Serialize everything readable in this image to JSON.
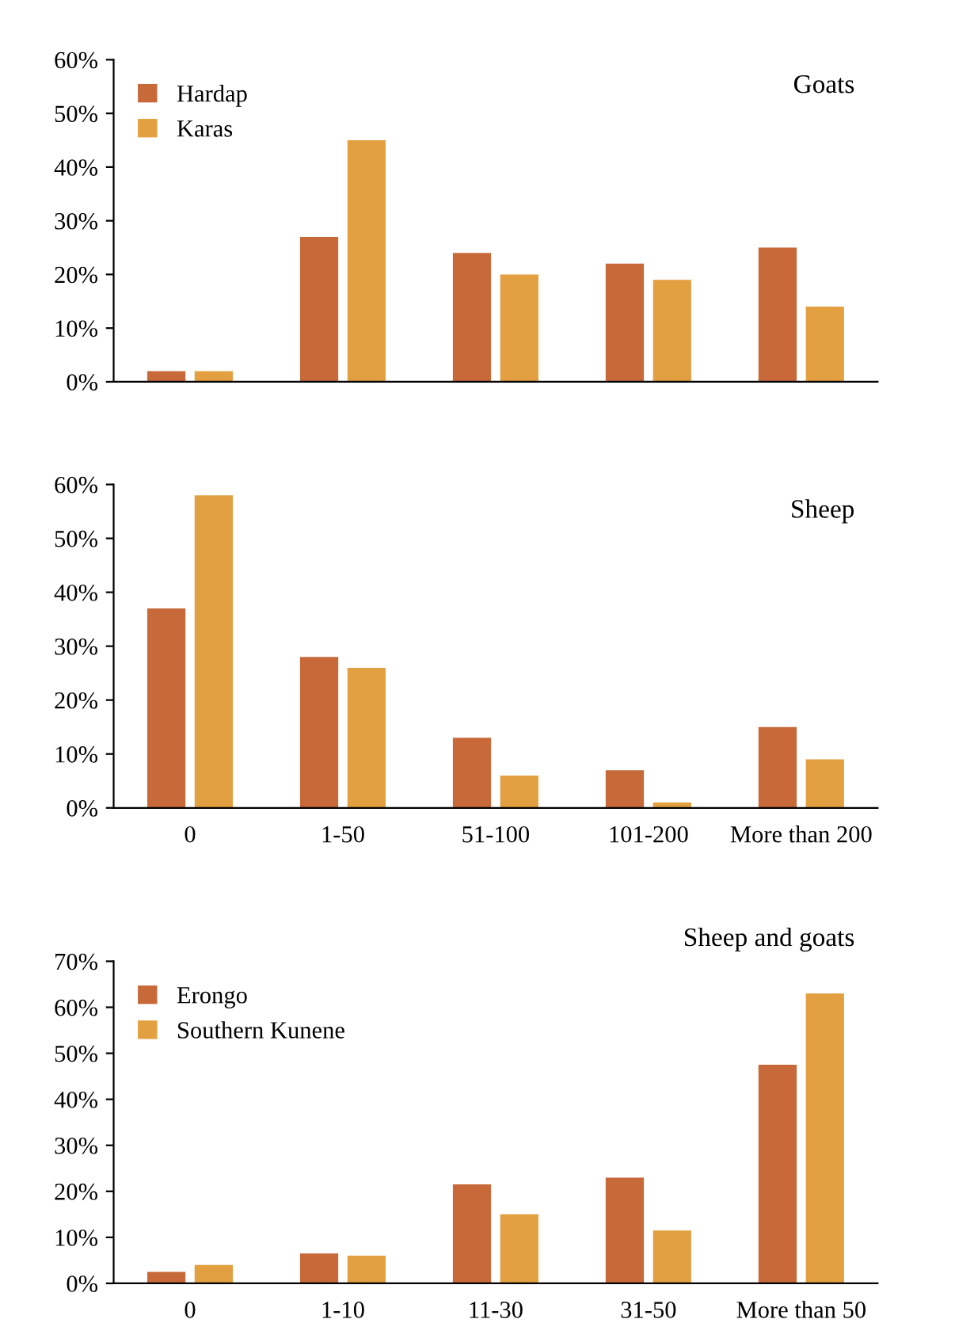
{
  "chart_data": [
    {
      "type": "bar",
      "title": "Goats",
      "categories": [
        null,
        null,
        null,
        null,
        null
      ],
      "legend": "top left",
      "grid": false,
      "ylim": [
        0,
        60
      ],
      "yticks": [
        {
          "value": 0,
          "label": "0%"
        },
        {
          "value": 10,
          "label": "10%"
        },
        {
          "value": 20,
          "label": "20%"
        },
        {
          "value": 30,
          "label": "30%"
        },
        {
          "value": 40,
          "label": "40%"
        },
        {
          "value": 50,
          "label": "50%"
        },
        {
          "value": 60,
          "label": "60%"
        }
      ],
      "series": [
        {
          "name": "Hardap",
          "color": "#c8693a",
          "values": [
            2,
            27,
            24,
            22,
            25
          ]
        },
        {
          "name": "Karas",
          "color": "#e3a040",
          "values": [
            2,
            45,
            20,
            19,
            14
          ]
        }
      ]
    },
    {
      "type": "bar",
      "title": "Sheep",
      "categories": [
        "0",
        "1-50",
        "51-100",
        "101-200",
        "More than 200"
      ],
      "grid": false,
      "ylim": [
        0,
        60
      ],
      "yticks": [
        {
          "value": 0,
          "label": "0%"
        },
        {
          "value": 10,
          "label": "10%"
        },
        {
          "value": 20,
          "label": "20%"
        },
        {
          "value": 30,
          "label": "30%"
        },
        {
          "value": 40,
          "label": "40%"
        },
        {
          "value": 50,
          "label": "50%"
        },
        {
          "value": 60,
          "label": "60%"
        }
      ],
      "series": [
        {
          "color": "#c8693a",
          "values": [
            37,
            28,
            13,
            7,
            15
          ]
        },
        {
          "color": "#e3a040",
          "values": [
            58,
            26,
            6,
            1,
            9
          ]
        }
      ]
    },
    {
      "type": "bar",
      "title": "Sheep and goats",
      "categories": [
        "0",
        "1-10",
        "11-30",
        "31-50",
        "More than 50"
      ],
      "legend": "top left",
      "grid": false,
      "ylim": [
        0,
        70
      ],
      "yticks": [
        {
          "value": 0,
          "label": "0%"
        },
        {
          "value": 10,
          "label": "10%"
        },
        {
          "value": 20,
          "label": "20%"
        },
        {
          "value": 30,
          "label": "30%"
        },
        {
          "value": 40,
          "label": "40%"
        },
        {
          "value": 50,
          "label": "50%"
        },
        {
          "value": 60,
          "label": "60%"
        },
        {
          "value": 70,
          "label": "70%"
        }
      ],
      "series": [
        {
          "name": "Erongo",
          "color": "#c8693a",
          "values": [
            2.5,
            6.5,
            21.5,
            23,
            47.5
          ]
        },
        {
          "name": "Southern Kunene",
          "color": "#e3a040",
          "values": [
            4,
            6,
            15,
            11.5,
            63
          ]
        }
      ]
    }
  ]
}
